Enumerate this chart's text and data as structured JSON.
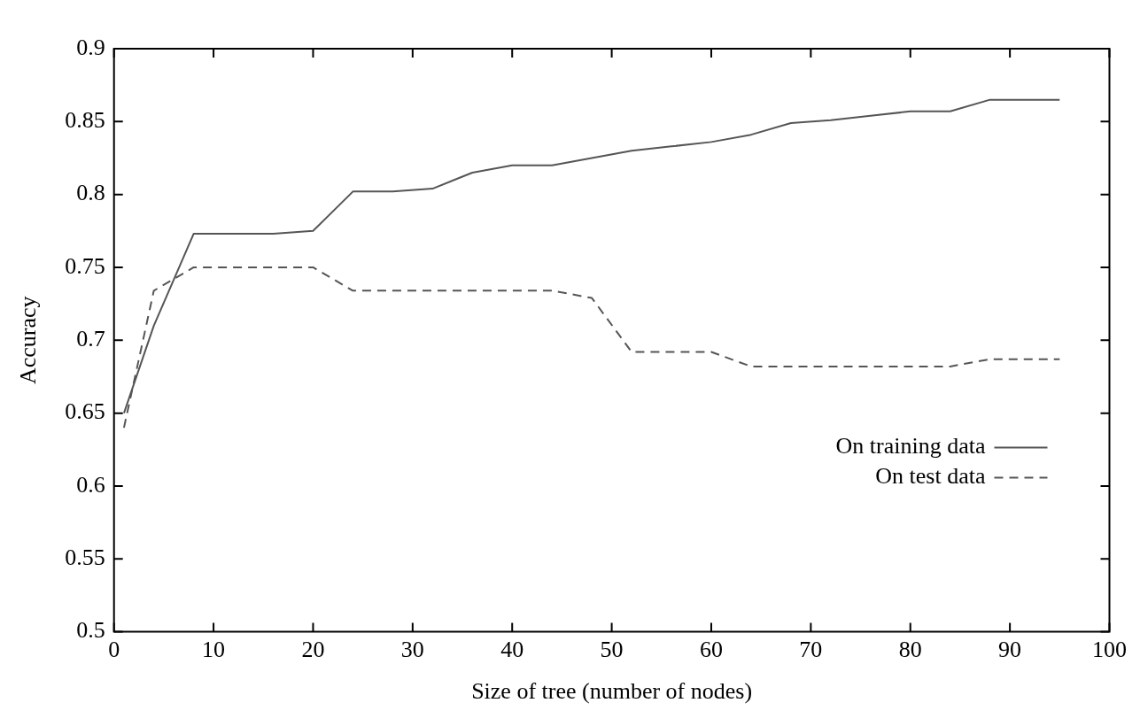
{
  "chart_data": {
    "type": "line",
    "xlabel": "Size of tree (number of nodes)",
    "ylabel": "Accuracy",
    "xlim": [
      0,
      100
    ],
    "xticks": [
      0,
      10,
      20,
      30,
      40,
      50,
      60,
      70,
      80,
      90,
      100
    ],
    "ylim": [
      0.5,
      0.9
    ],
    "yticks": [
      0.5,
      0.55,
      0.6,
      0.65,
      0.7,
      0.75,
      0.8,
      0.85,
      0.9
    ],
    "grid": false,
    "legend": "bottom right",
    "marker": "none",
    "series": [
      {
        "name": "On training data",
        "color": "#555555",
        "line_style": "solid",
        "x": [
          1,
          4,
          8,
          16,
          20,
          24,
          28,
          32,
          36,
          40,
          44,
          48,
          52,
          56,
          60,
          64,
          68,
          72,
          76,
          80,
          84,
          88,
          95
        ],
        "values": [
          0.65,
          0.71,
          0.773,
          0.773,
          0.775,
          0.802,
          0.802,
          0.804,
          0.815,
          0.82,
          0.82,
          0.825,
          0.83,
          0.833,
          0.836,
          0.841,
          0.849,
          0.851,
          0.854,
          0.857,
          0.857,
          0.865,
          0.865
        ]
      },
      {
        "name": "On test data",
        "color": "#555555",
        "line_style": "dashed",
        "x": [
          1,
          4,
          8,
          20,
          24,
          44,
          48,
          52,
          60,
          64,
          84,
          88,
          95
        ],
        "values": [
          0.64,
          0.734,
          0.75,
          0.75,
          0.734,
          0.734,
          0.729,
          0.692,
          0.692,
          0.682,
          0.682,
          0.687,
          0.687
        ]
      }
    ]
  }
}
